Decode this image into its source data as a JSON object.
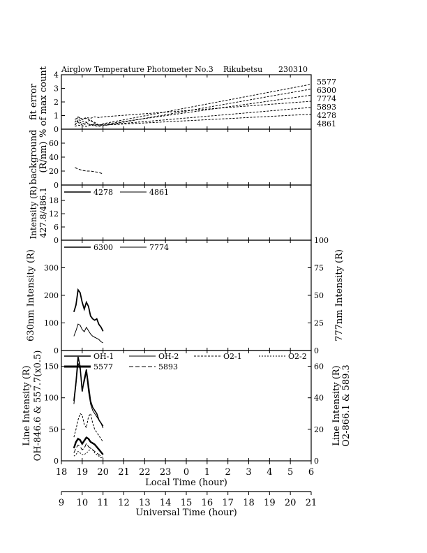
{
  "chart_data": {
    "type": "line",
    "title": "Airglow Temperature Photometer No.3",
    "station": "Rikubetsu",
    "date": "230310",
    "x_axis": {
      "label": "Local Time (hour)",
      "ticks": [
        "18",
        "19",
        "20",
        "21",
        "22",
        "23",
        "0",
        "1",
        "2",
        "3",
        "4",
        "5",
        "6"
      ],
      "range_hours": [
        18,
        30
      ]
    },
    "x2_axis": {
      "label": "Universal Time (hour)",
      "ticks": [
        "9",
        "10",
        "11",
        "12",
        "13",
        "14",
        "15",
        "16",
        "17",
        "18",
        "19",
        "20",
        "21"
      ]
    },
    "panels": [
      {
        "id": "fit-error",
        "ylabel": [
          "fit error",
          "% of max count"
        ],
        "ylim": [
          0,
          4
        ],
        "yticks": [
          "0",
          "1",
          "2",
          "3",
          "4"
        ],
        "right_labels": [
          "5577",
          "6300",
          "7774",
          "5893",
          "4278",
          "4861"
        ],
        "series": [
          {
            "name": "5577",
            "x": [
              18.65,
              18.8,
              19.0,
              19.2,
              19.4,
              19.6,
              19.8,
              20.0,
              30.0
            ],
            "y": [
              0.3,
              0.6,
              0.4,
              0.5,
              0.3,
              0.35,
              0.3,
              0.4,
              3.3
            ]
          },
          {
            "name": "6300",
            "x": [
              18.65,
              18.8,
              19.0,
              19.2,
              19.4,
              19.6,
              19.8,
              20.0,
              30.0
            ],
            "y": [
              0.2,
              0.3,
              0.25,
              0.2,
              0.3,
              0.25,
              0.2,
              0.25,
              2.95
            ]
          },
          {
            "name": "7774",
            "x": [
              18.65,
              18.8,
              19.0,
              19.2,
              19.4,
              19.6,
              19.8,
              20.0,
              30.0
            ],
            "y": [
              0.35,
              0.5,
              0.3,
              0.4,
              0.35,
              0.3,
              0.3,
              0.35,
              2.5
            ]
          },
          {
            "name": "5893",
            "x": [
              18.65,
              18.8,
              19.0,
              19.2,
              19.4,
              19.6,
              19.8,
              20.0,
              30.0
            ],
            "y": [
              0.7,
              0.9,
              0.75,
              0.85,
              0.8,
              0.9,
              0.85,
              0.9,
              2.05
            ]
          },
          {
            "name": "4278",
            "x": [
              18.65,
              18.8,
              19.0,
              19.2,
              19.4,
              19.6,
              19.8,
              20.0,
              30.0
            ],
            "y": [
              0.3,
              0.7,
              0.6,
              0.5,
              0.7,
              0.4,
              0.3,
              0.3,
              1.6
            ]
          },
          {
            "name": "4861",
            "x": [
              18.65,
              18.8,
              19.0,
              19.2,
              19.4,
              19.6,
              19.8,
              20.0,
              30.0
            ],
            "y": [
              0.5,
              0.9,
              0.7,
              0.8,
              0.6,
              0.5,
              0.3,
              0.3,
              1.1
            ]
          }
        ]
      },
      {
        "id": "background",
        "ylabel": [
          "background",
          "(R/nm)"
        ],
        "ylim": [
          0,
          80
        ],
        "yticks": [
          "0",
          "20",
          "40",
          "60"
        ],
        "series": [
          {
            "name": "background",
            "x": [
              18.65,
              18.8,
              19.0,
              19.2,
              19.4,
              19.6,
              19.8,
              20.0
            ],
            "y": [
              25,
              23,
              21,
              20,
              20,
              19,
              18,
              16
            ]
          }
        ]
      },
      {
        "id": "blue-lines",
        "ylabel": [
          "Intensity (R)",
          "427.8/486.1"
        ],
        "ylim": [
          0,
          25
        ],
        "yticks": [
          "0",
          "6",
          "12",
          "18"
        ],
        "legend": [
          "4278",
          "4861"
        ],
        "series": [
          {
            "name": "4278",
            "x": [],
            "y": []
          },
          {
            "name": "4861",
            "x": [],
            "y": []
          }
        ]
      },
      {
        "id": "red-lines",
        "ylabel_left": "630nm Intensity (R)",
        "ylabel_right": "777nm Intensity (R)",
        "ylim": [
          0,
          400
        ],
        "ylim_right": [
          0,
          100
        ],
        "yticks": [
          "0",
          "100",
          "200",
          "300"
        ],
        "yticks_right": [
          "0",
          "25",
          "50",
          "75",
          "100"
        ],
        "legend": [
          "6300",
          "7774"
        ],
        "series": [
          {
            "name": "6300",
            "x": [
              18.6,
              18.7,
              18.8,
              18.9,
              19.0,
              19.1,
              19.2,
              19.3,
              19.4,
              19.5,
              19.6,
              19.7,
              19.8,
              19.9,
              20.0
            ],
            "y": [
              140,
              165,
              220,
              210,
              175,
              150,
              175,
              160,
              125,
              115,
              110,
              115,
              95,
              85,
              70
            ]
          },
          {
            "name": "7774",
            "x": [
              18.6,
              18.7,
              18.8,
              18.9,
              19.0,
              19.1,
              19.2,
              19.3,
              19.4,
              19.5,
              19.6,
              19.7,
              19.8,
              19.9,
              20.0
            ],
            "y": [
              13,
              18,
              24,
              23,
              19,
              17,
              21,
              18,
              15,
              13,
              12,
              11,
              10,
              8,
              7
            ]
          }
        ]
      },
      {
        "id": "oh-o2-lines",
        "ylabel_left": [
          "Line Intensity (R)",
          "OH-846.6 & 557.7(x0.5)"
        ],
        "ylabel_right": [
          "Line Intensity (R)",
          "O2-866.1 & 589.3"
        ],
        "ylim": [
          0,
          175
        ],
        "ylim_right": [
          0,
          70
        ],
        "yticks": [
          "0",
          "50",
          "100",
          "150"
        ],
        "yticks_right": [
          "0",
          "20",
          "40",
          "60"
        ],
        "legend": [
          "OH-1",
          "OH-2",
          "O2-1",
          "O2-2",
          "5577",
          "5893"
        ],
        "series": [
          {
            "name": "OH-1",
            "x": [
              18.6,
              18.7,
              18.8,
              18.9,
              19.0,
              19.1,
              19.2,
              19.3,
              19.4,
              19.5,
              19.6,
              19.7,
              19.8,
              19.9,
              20.0
            ],
            "y": [
              95,
              125,
              165,
              150,
              110,
              130,
              145,
              120,
              95,
              85,
              80,
              75,
              65,
              60,
              55
            ]
          },
          {
            "name": "OH-2",
            "x": [
              18.6,
              18.7,
              18.8,
              18.9,
              19.0,
              19.1,
              19.2,
              19.3,
              19.4,
              19.5,
              19.6,
              19.7,
              19.8,
              19.9,
              20.0
            ],
            "y": [
              90,
              120,
              155,
              145,
              115,
              125,
              140,
              110,
              90,
              80,
              75,
              70,
              65,
              60,
              52
            ]
          },
          {
            "name": "O2-1",
            "x": [
              18.6,
              18.7,
              18.8,
              18.9,
              19.0,
              19.1,
              19.2,
              19.3,
              19.4,
              19.5,
              19.6,
              19.7,
              19.8,
              19.9,
              20.0
            ],
            "y": [
              15,
              20,
              26,
              30,
              29,
              23,
              21,
              28,
              30,
              24,
              20,
              18,
              16,
              14,
              12
            ]
          },
          {
            "name": "O2-2",
            "x": [
              18.6,
              18.7,
              18.8,
              18.9,
              19.0,
              19.1,
              19.2,
              19.3,
              19.4,
              19.5,
              19.6,
              19.7,
              19.8,
              19.9,
              20.0
            ],
            "y": [
              3,
              4,
              6,
              5,
              4,
              4,
              5,
              6,
              8,
              7,
              5,
              4,
              3,
              2,
              2
            ]
          },
          {
            "name": "5577",
            "x": [
              18.6,
              18.7,
              18.8,
              18.9,
              19.0,
              19.1,
              19.2,
              19.3,
              19.4,
              19.5,
              19.6,
              19.7,
              19.8,
              19.9,
              20.0
            ],
            "y": [
              20,
              30,
              35,
              33,
              27,
              32,
              37,
              35,
              30,
              28,
              26,
              22,
              18,
              14,
              10
            ]
          },
          {
            "name": "5893",
            "x": [
              18.6,
              18.7,
              18.8,
              18.9,
              19.0,
              19.1,
              19.2,
              19.3,
              19.4,
              19.5,
              19.6,
              19.7,
              19.8,
              19.9,
              20.0
            ],
            "y": [
              5,
              8,
              10,
              9,
              7,
              8,
              11,
              9,
              8,
              7,
              6,
              5,
              4,
              3,
              2
            ]
          }
        ]
      }
    ]
  }
}
